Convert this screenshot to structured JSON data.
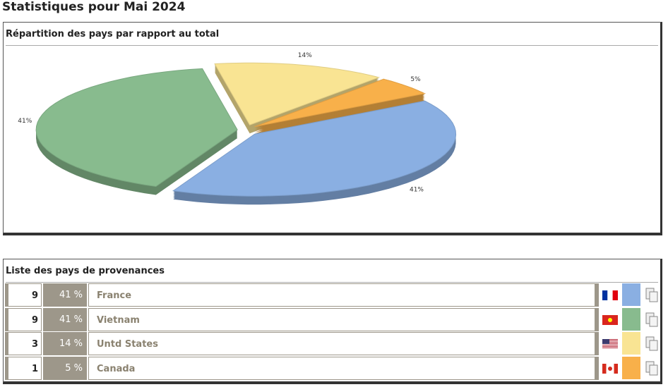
{
  "title": "Statistiques pour Mai 2024",
  "chart_data": {
    "type": "pie",
    "title": "Répartition des pays par rapport au total",
    "values": [
      41,
      41,
      14,
      5
    ],
    "value_labels": [
      "41%",
      "41%",
      "14%",
      "5%"
    ],
    "colors": [
      "#8aafe2",
      "#88bb8e",
      "#f9e493",
      "#f8b04a"
    ]
  },
  "table": {
    "title": "Liste des pays de provenances",
    "rows": [
      [
        "9",
        "41 %",
        "France"
      ],
      [
        "9",
        "41 %",
        "Vietnam"
      ],
      [
        "3",
        "14 %",
        "Untd States"
      ],
      [
        "1",
        "5 %",
        "Canada"
      ]
    ]
  }
}
